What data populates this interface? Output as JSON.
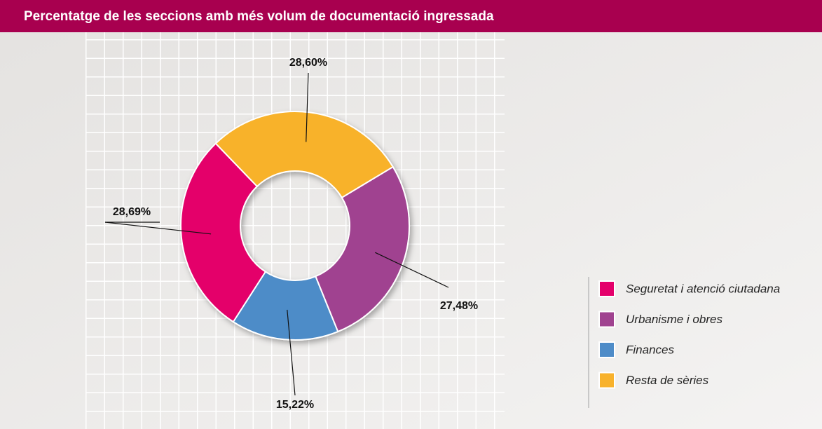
{
  "chart_data": {
    "type": "donut",
    "title": "Percentatge de  les seccions amb més volum de documentació ingressada",
    "categories": [
      "Seguretat i atenció ciutadana",
      "Urbanisme i obres",
      "Finances",
      "Resta de sèries"
    ],
    "values": [
      28.69,
      27.48,
      15.22,
      28.6
    ],
    "value_labels": [
      "28,69%",
      "27,48%",
      "15,22%",
      "28,60%"
    ],
    "colors": [
      "#e4006b",
      "#a04390",
      "#4e8cc8",
      "#f8b22c"
    ],
    "legend": "right"
  }
}
